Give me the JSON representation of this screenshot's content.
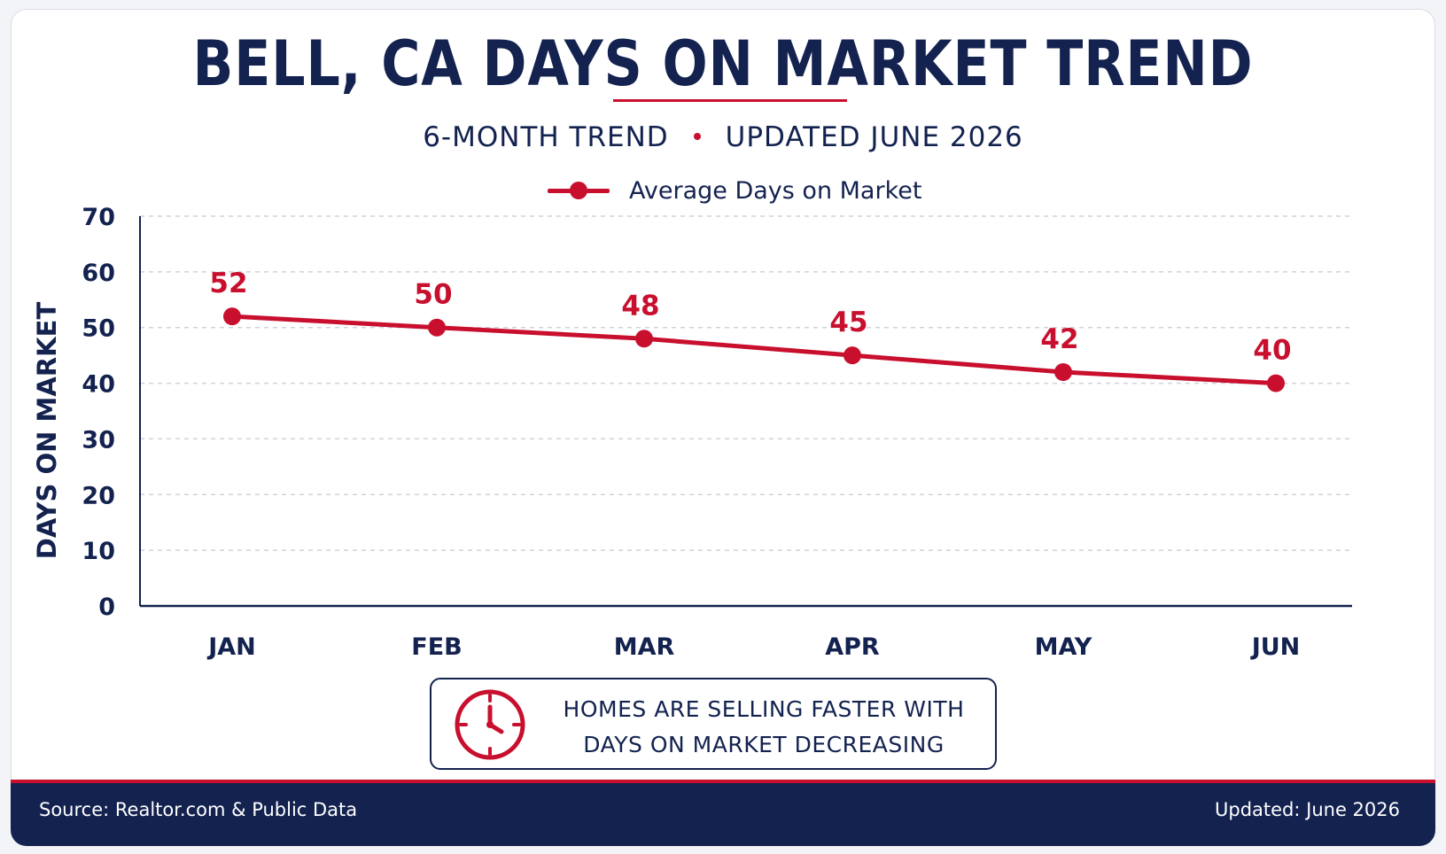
{
  "header": {
    "title": "BELL, CA DAYS ON MARKET TREND",
    "subtitle_left": "6-MONTH TREND",
    "subtitle_right": "UPDATED JUNE 2026"
  },
  "colors": {
    "navy": "#13224f",
    "red": "#c8102e",
    "grid": "#cfd3db"
  },
  "chart_data": {
    "type": "line",
    "title": "BELL, CA DAYS ON MARKET TREND",
    "subtitle": "6-MONTH TREND • UPDATED JUNE 2026",
    "categories": [
      "JAN",
      "FEB",
      "MAR",
      "APR",
      "MAY",
      "JUN"
    ],
    "series": [
      {
        "name": "Average Days on Market",
        "values": [
          52,
          50,
          48,
          45,
          42,
          40
        ],
        "color": "#c8102e"
      }
    ],
    "data_labels": [
      "52",
      "50",
      "48",
      "45",
      "42",
      "40"
    ],
    "xlabel": "",
    "ylabel": "DAYS ON MARKET",
    "ylim": [
      0,
      70
    ],
    "yticks": [
      0,
      10,
      20,
      30,
      40,
      50,
      60,
      70
    ],
    "grid": true,
    "legend_position": "top-center"
  },
  "callout": {
    "icon": "clock-icon",
    "line1": "HOMES ARE SELLING FASTER WITH",
    "line2": "DAYS ON MARKET DECREASING"
  },
  "footer": {
    "source": "Source: Realtor.com & Public Data",
    "updated": "Updated: June 2026"
  }
}
